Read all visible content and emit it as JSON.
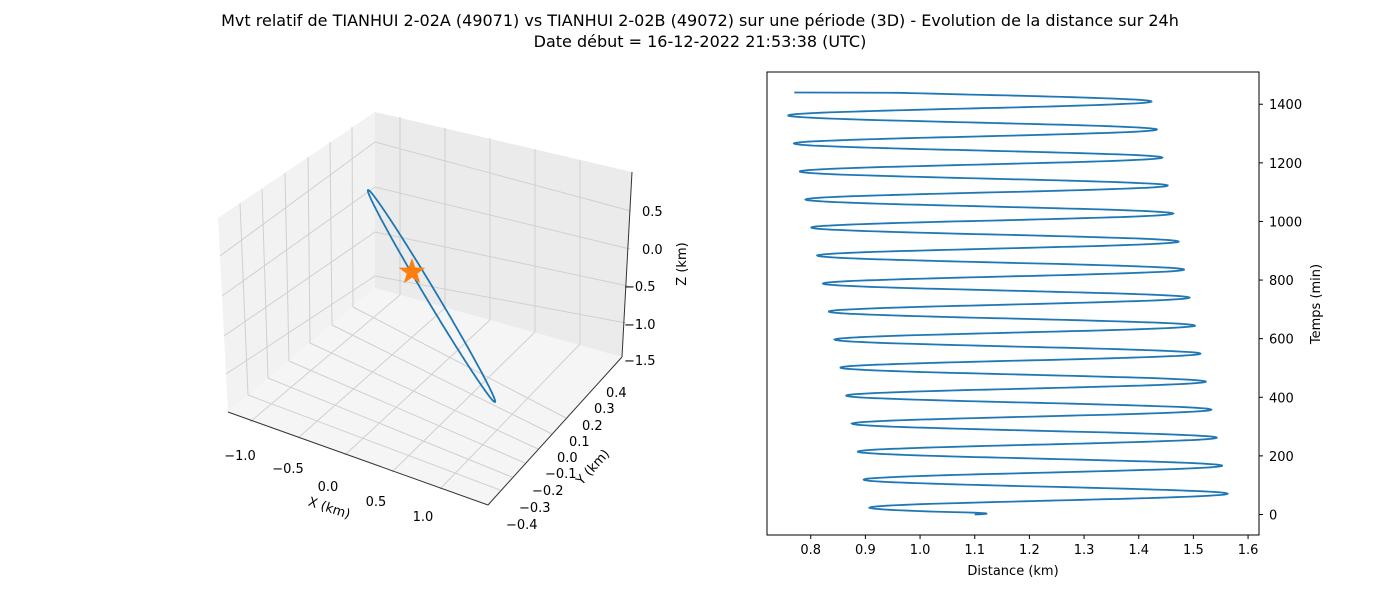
{
  "figure": {
    "title": "Mvt relatif de TIANHUI 2-02A (49071) vs TIANHUI 2-02B (49072) sur une période (3D) - Evolution de la distance sur 24h",
    "subtitle": "Date début = 16-12-2022 21:53:38 (UTC)"
  },
  "colors": {
    "series": "#1f77b4",
    "marker": "#ff7f0e",
    "pane": "#f2f2f2",
    "grid": "#cccccc"
  },
  "chart_data": [
    {
      "type": "line",
      "projection": "3d",
      "xlabel": "X (km)",
      "ylabel": "Y (km)",
      "zlabel": "Z (km)",
      "x_ticks": [
        "−1.0",
        "−0.5",
        "0.0",
        "0.5",
        "1.0"
      ],
      "y_ticks": [
        "−0.4",
        "−0.3",
        "−0.2",
        "−0.1",
        "0.0",
        "0.1",
        "0.2",
        "0.3",
        "0.4"
      ],
      "z_ticks": [
        "0.5",
        "0.0",
        "−0.5",
        "−1.0",
        "−1.5"
      ],
      "grid": true,
      "series": [
        {
          "shape": "closed elongated ellipse (relative orbit)",
          "x": [
            -1.12,
            -0.75,
            -0.35,
            0.05,
            0.45,
            0.82,
            1.12,
            1.05,
            0.75,
            0.35,
            -0.05,
            -0.45,
            -0.82,
            -1.1
          ],
          "y": [
            0.18,
            0.12,
            0.04,
            -0.04,
            -0.12,
            -0.2,
            -0.25,
            -0.18,
            -0.1,
            -0.02,
            0.06,
            0.14,
            0.2,
            0.18
          ],
          "z": [
            0.75,
            0.45,
            0.1,
            -0.25,
            -0.6,
            -0.95,
            -1.35,
            -1.2,
            -0.85,
            -0.5,
            -0.15,
            0.2,
            0.55,
            0.75
          ]
        }
      ],
      "marker": {
        "symbol": "star",
        "x": 0.0,
        "y": 0.0,
        "z": 0.0
      }
    },
    {
      "type": "line",
      "xlabel": "Distance (km)",
      "ylabel": "Temps (min)",
      "xlim": [
        0.72,
        1.62
      ],
      "ylim": [
        -70,
        1510
      ],
      "x_ticks": [
        0.8,
        0.9,
        1.0,
        1.1,
        1.2,
        1.3,
        1.4,
        1.5,
        1.6
      ],
      "y_ticks": [
        0,
        200,
        400,
        600,
        800,
        1000,
        1200,
        1400
      ],
      "grid": false,
      "series": [
        {
          "oscillation": {
            "t_start": 0,
            "t_end": 1440,
            "period_min": 95.6,
            "max_distance": [
              [
                71,
                1.57
              ],
              [
                1393,
                1.42
              ]
            ],
            "min_distance": [
              [
                24,
                0.91
              ],
              [
                1345,
                0.75
              ]
            ],
            "start_distance": 1.1,
            "end_distance": 0.77
          }
        }
      ]
    }
  ]
}
